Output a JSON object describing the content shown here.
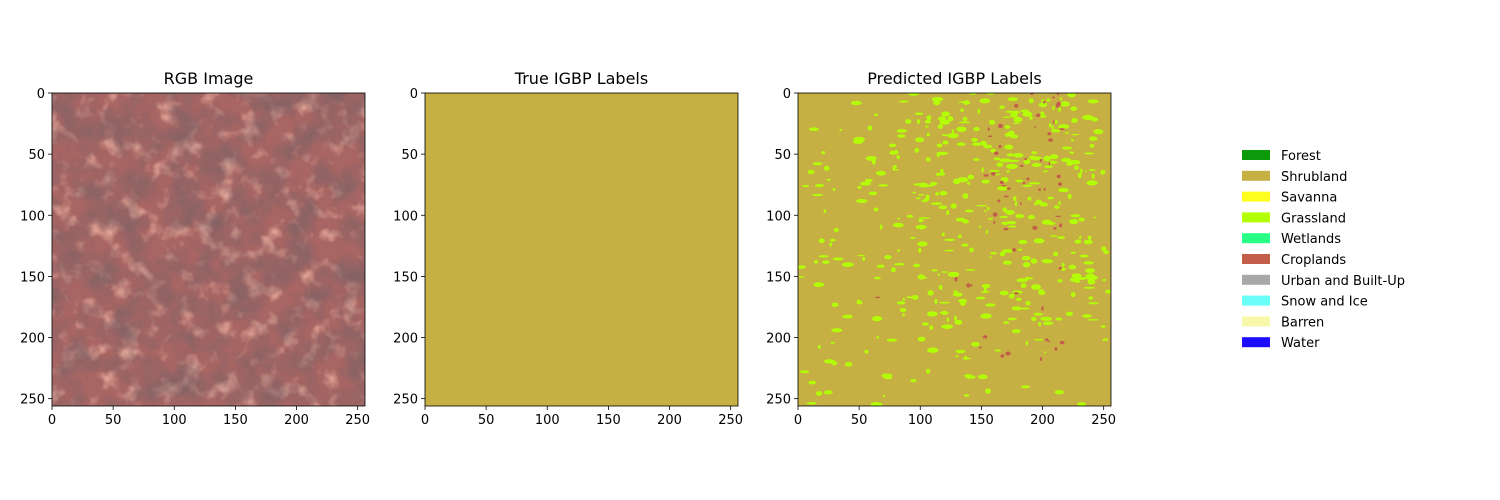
{
  "figure": {
    "panels": [
      {
        "id": "rgb",
        "title": "RGB Image",
        "image_kind": "satellite-rgb",
        "base_color": "#a86563"
      },
      {
        "id": "true",
        "title": "True IGBP Labels",
        "image_kind": "uniform-class",
        "fill_class": "Shrubland"
      },
      {
        "id": "pred",
        "title": "Predicted IGBP Labels",
        "image_kind": "classification-map",
        "dominant_class": "Shrubland",
        "secondary_classes": [
          "Grassland",
          "Croplands"
        ]
      }
    ],
    "legend": {
      "placement": "right",
      "items": [
        {
          "label": "Forest",
          "color": "#0a9a0a"
        },
        {
          "label": "Shrubland",
          "color": "#c6b044"
        },
        {
          "label": "Savanna",
          "color": "#ffff1f"
        },
        {
          "label": "Grassland",
          "color": "#b2ff06"
        },
        {
          "label": "Wetlands",
          "color": "#27ff87"
        },
        {
          "label": "Croplands",
          "color": "#c25e4a"
        },
        {
          "label": "Urban and Built-Up",
          "color": "#a8a8a8"
        },
        {
          "label": "Snow and Ice",
          "color": "#69fff8"
        },
        {
          "label": "Barren",
          "color": "#f8f8aa"
        },
        {
          "label": "Water",
          "color": "#1c0dff"
        }
      ]
    }
  },
  "chart_data": [
    {
      "type": "heatmap",
      "title": "RGB Image",
      "xlim": [
        0,
        256
      ],
      "ylim": [
        256,
        0
      ],
      "xticks": [
        0,
        50,
        100,
        150,
        200,
        250
      ],
      "yticks": [
        0,
        50,
        100,
        150,
        200,
        250
      ],
      "content": "satellite RGB image, reddish-brown terrain"
    },
    {
      "type": "heatmap",
      "title": "True IGBP Labels",
      "xlim": [
        0,
        256
      ],
      "ylim": [
        256,
        0
      ],
      "xticks": [
        0,
        50,
        100,
        150,
        200,
        250
      ],
      "yticks": [
        0,
        50,
        100,
        150,
        200,
        250
      ],
      "content": "all pixels Shrubland"
    },
    {
      "type": "heatmap",
      "title": "Predicted IGBP Labels",
      "xlim": [
        0,
        256
      ],
      "ylim": [
        256,
        0
      ],
      "xticks": [
        0,
        50,
        100,
        150,
        200,
        250
      ],
      "yticks": [
        0,
        50,
        100,
        150,
        200,
        250
      ],
      "content": "mostly Shrubland with scattered Grassland and Croplands patches"
    }
  ]
}
